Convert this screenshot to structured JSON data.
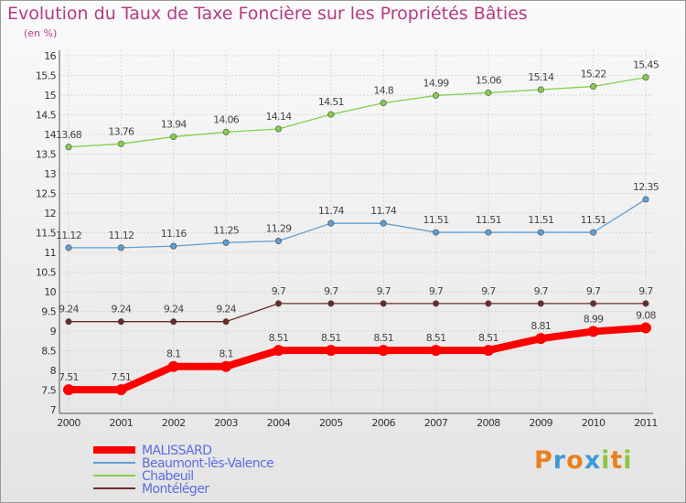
{
  "title": "Evolution du Taux de Taxe Foncière sur les Propriétés Bâties",
  "subtitle": "(en %)",
  "logo_text": "Proxiti",
  "chart_data": {
    "type": "line",
    "x": [
      "2000",
      "2001",
      "2002",
      "2003",
      "2004",
      "2005",
      "2006",
      "2007",
      "2008",
      "2009",
      "2010",
      "2011"
    ],
    "ylim": [
      7,
      16
    ],
    "yticks": [
      7,
      7.5,
      8,
      8.5,
      9,
      9.5,
      10,
      10.5,
      11,
      11.5,
      12,
      12.5,
      13,
      13.5,
      14,
      14.5,
      15,
      15.5,
      16
    ],
    "grid": true,
    "legend_position": "bottom-left",
    "series": [
      {
        "name": "MALISSARD",
        "color": "#ff0000",
        "values": [
          7.51,
          7.51,
          8.1,
          8.1,
          8.51,
          8.51,
          8.51,
          8.51,
          8.51,
          8.81,
          8.99,
          9.08
        ],
        "labels": [
          "7.51",
          "7.51",
          "8.1",
          "8.1",
          "8.51",
          "8.51",
          "8.51",
          "8.51",
          "8.51",
          "8.81",
          "8.99",
          "9.08"
        ]
      },
      {
        "name": "Beaumont-lès-Valence",
        "color": "#5f9fd4",
        "values": [
          11.12,
          11.12,
          11.16,
          11.25,
          11.29,
          11.74,
          11.74,
          11.51,
          11.51,
          11.51,
          11.51,
          12.35
        ],
        "labels": [
          "11.12",
          "11.12",
          "11.16",
          "11.25",
          "11.29",
          "11.74",
          "11.74",
          "11.51",
          "11.51",
          "11.51",
          "11.51",
          "12.35"
        ]
      },
      {
        "name": "Chabeuil",
        "color": "#84d04c",
        "values": [
          13.68,
          13.76,
          13.94,
          14.06,
          14.14,
          14.51,
          14.8,
          14.99,
          15.06,
          15.14,
          15.22,
          15.45
        ],
        "labels": [
          "13.68",
          "13.76",
          "13.94",
          "14.06",
          "14.14",
          "14.51",
          "14.8",
          "14.99",
          "15.06",
          "15.14",
          "15.22",
          "15.45"
        ]
      },
      {
        "name": "Montéléger",
        "color": "#6b2a2a",
        "values": [
          9.24,
          9.24,
          9.24,
          9.24,
          9.7,
          9.7,
          9.7,
          9.7,
          9.7,
          9.7,
          9.7,
          9.7
        ],
        "labels": [
          "9.24",
          "9.24",
          "9.24",
          "9.24",
          "9.7",
          "9.7",
          "9.7",
          "9.7",
          "9.7",
          "9.7",
          "9.7",
          "9.7"
        ]
      }
    ]
  }
}
